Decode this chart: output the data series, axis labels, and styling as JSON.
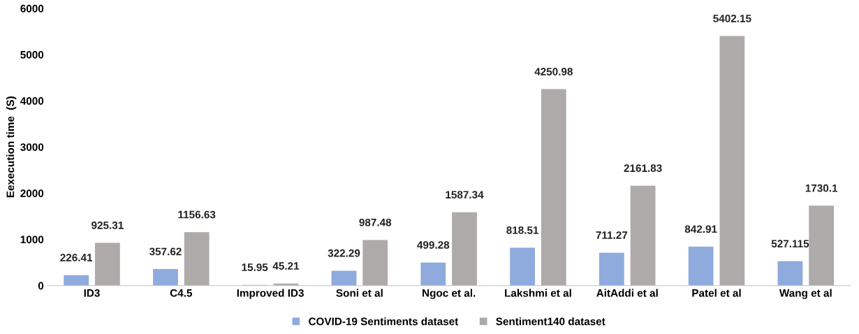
{
  "chart_data": {
    "type": "bar",
    "ylabel": "Eexecution time  (S)",
    "categories": [
      "ID3",
      "C4.5",
      "Improved ID3",
      "Soni et al",
      "Ngoc et al.",
      "Lakshmi et al",
      "AitAddi et al",
      "Patel et al",
      "Wang et al"
    ],
    "series": [
      {
        "name": "COVID-19 Sentiments dataset",
        "color": "#8faadc",
        "values": [
          226.41,
          357.62,
          15.95,
          322.29,
          499.28,
          818.51,
          711.27,
          842.91,
          527.115
        ]
      },
      {
        "name": "Sentiment140 dataset",
        "color": "#aeaaaa",
        "values": [
          925.31,
          1156.63,
          45.21,
          987.48,
          1587.34,
          4250.98,
          2161.83,
          5402.15,
          1730.1
        ]
      }
    ],
    "ylim": [
      0,
      6000
    ],
    "yticks": [
      0,
      1000,
      2000,
      3000,
      4000,
      5000,
      6000
    ],
    "data_labels": true,
    "grid": false,
    "legend": "bottom"
  }
}
